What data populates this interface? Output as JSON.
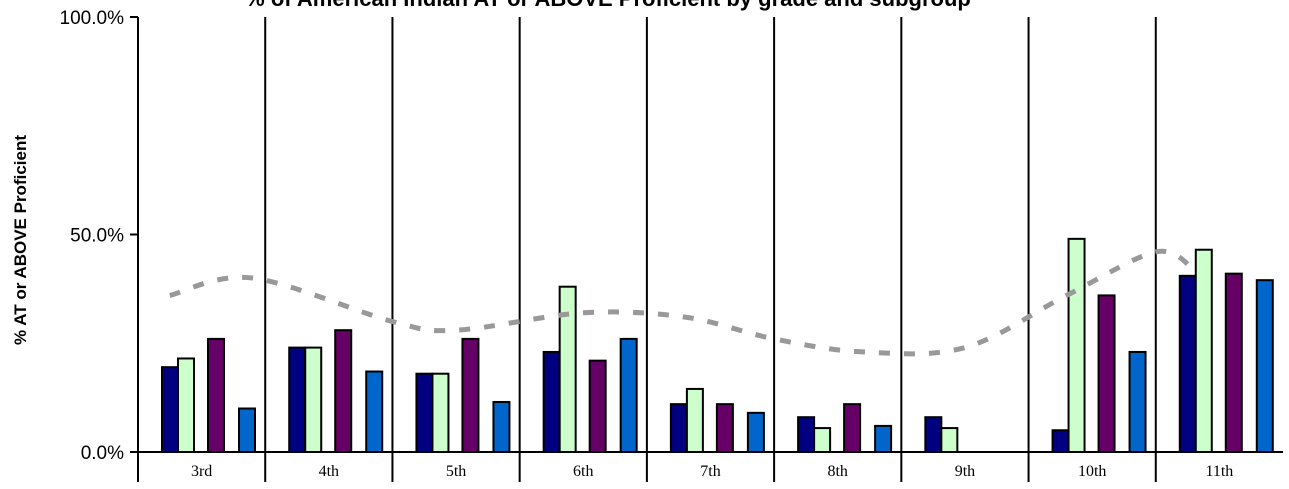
{
  "chart_data": {
    "type": "bar",
    "title": "% of American Indian AT or ABOVE Proficient by grade and subgroup",
    "xlabel": "",
    "ylabel": "% AT or ABOVE Proficient",
    "ylim": [
      0,
      100
    ],
    "yticks": [
      0,
      50,
      100
    ],
    "ytick_labels": [
      "0.0%",
      "50.0%",
      "100.0%"
    ],
    "categories": [
      "3rd",
      "4th",
      "5th",
      "6th",
      "7th",
      "8th",
      "9th",
      "10th",
      "11th"
    ],
    "grid": false,
    "legend": "none",
    "series": [
      {
        "color": "#000080",
        "values": [
          19.5,
          24,
          18,
          23,
          11,
          8,
          8,
          5,
          40.5
        ]
      },
      {
        "color": "#ccffcc",
        "values": [
          21.5,
          24,
          18,
          38,
          14.5,
          5.5,
          5.5,
          49,
          46.5
        ]
      },
      {
        "color": "#660066",
        "values": [
          26,
          28,
          26,
          21,
          11,
          11,
          null,
          36,
          41
        ]
      },
      {
        "color": "#0066cc",
        "values": [
          10,
          18.5,
          11.5,
          26,
          9,
          6,
          null,
          23,
          39.5
        ]
      }
    ],
    "trend_line": {
      "style": "dashed",
      "color": "#999999",
      "points": [
        [
          0.25,
          36
        ],
        [
          0.9,
          40
        ],
        [
          2.0,
          30
        ],
        [
          2.5,
          28
        ],
        [
          3.5,
          32
        ],
        [
          4.3,
          31
        ],
        [
          5.0,
          26
        ],
        [
          5.7,
          23
        ],
        [
          6.5,
          24
        ],
        [
          7.3,
          36
        ],
        [
          8.0,
          46
        ],
        [
          8.3,
          42
        ]
      ]
    }
  }
}
